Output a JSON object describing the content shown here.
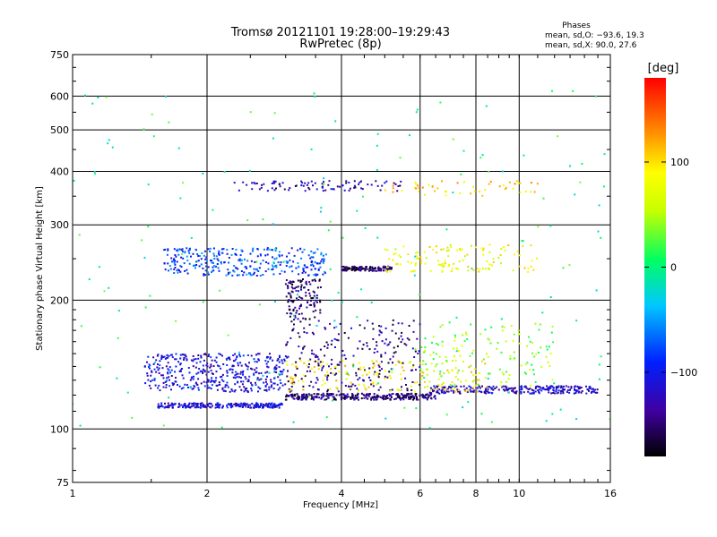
{
  "chart_data": {
    "type": "scatter",
    "title": "Tromsø 20121101 19:28:00–19:29:43",
    "subtitle": "RwPretec (8p)",
    "xlabel": "Frequency [MHz]",
    "ylabel": "Stationary phase Virtual Height [km]",
    "x_scale": "log",
    "y_scale": "log",
    "xlim": [
      1,
      16
    ],
    "ylim": [
      75,
      750
    ],
    "x_ticks": [
      "1",
      "2",
      "4",
      "6",
      "8",
      "10",
      "16"
    ],
    "y_ticks": [
      "75",
      "100",
      "200",
      "300",
      "400",
      "500",
      "600",
      "750"
    ],
    "grid": true,
    "stats": {
      "heading": "Phases",
      "line_o": "mean, sd,O: −93.6, 19.3",
      "line_x": "mean, sd,X:  90.0, 27.6"
    },
    "colorbar": {
      "label": "[deg]",
      "range": [
        -180,
        180
      ],
      "ticks": [
        "100",
        "0",
        "−100"
      ]
    },
    "clusters": [
      {
        "x": [
          1.55,
          2.95
        ],
        "y": [
          112,
          115
        ],
        "phase": -110,
        "count": 260
      },
      {
        "x": [
          3.0,
          6.5
        ],
        "y": [
          117,
          121
        ],
        "phase": -145,
        "count": 300
      },
      {
        "x": [
          6.3,
          15.0
        ],
        "y": [
          121,
          126
        ],
        "phase": -120,
        "count": 260
      },
      {
        "x": [
          1.45,
          3.0
        ],
        "y": [
          122,
          150
        ],
        "phase": -110,
        "count": 420
      },
      {
        "x": [
          3.0,
          6.0
        ],
        "y": [
          122,
          180
        ],
        "phase": -140,
        "count": 240
      },
      {
        "x": [
          3.0,
          8.5
        ],
        "y": [
          122,
          145
        ],
        "phase": 90,
        "count": 160
      },
      {
        "x": [
          6.0,
          12.0
        ],
        "y": [
          125,
          180
        ],
        "phase": 40,
        "count": 140
      },
      {
        "x": [
          1.6,
          3.7
        ],
        "y": [
          228,
          265
        ],
        "phase": -80,
        "count": 320
      },
      {
        "x": [
          4.0,
          5.2
        ],
        "y": [
          234,
          240
        ],
        "phase": -150,
        "count": 120
      },
      {
        "x": [
          5.0,
          11.0
        ],
        "y": [
          232,
          270
        ],
        "phase": 80,
        "count": 120
      },
      {
        "x": [
          3.0,
          3.6
        ],
        "y": [
          180,
          225
        ],
        "phase": -150,
        "count": 120
      },
      {
        "x": [
          2.3,
          5.5
        ],
        "y": [
          360,
          380
        ],
        "phase": -130,
        "count": 90
      },
      {
        "x": [
          5.0,
          11.0
        ],
        "y": [
          350,
          380
        ],
        "phase": 100,
        "count": 50
      },
      {
        "x": [
          1.0,
          16.0
        ],
        "y": [
          100,
          620
        ],
        "phase": 0,
        "count": 180
      }
    ]
  }
}
